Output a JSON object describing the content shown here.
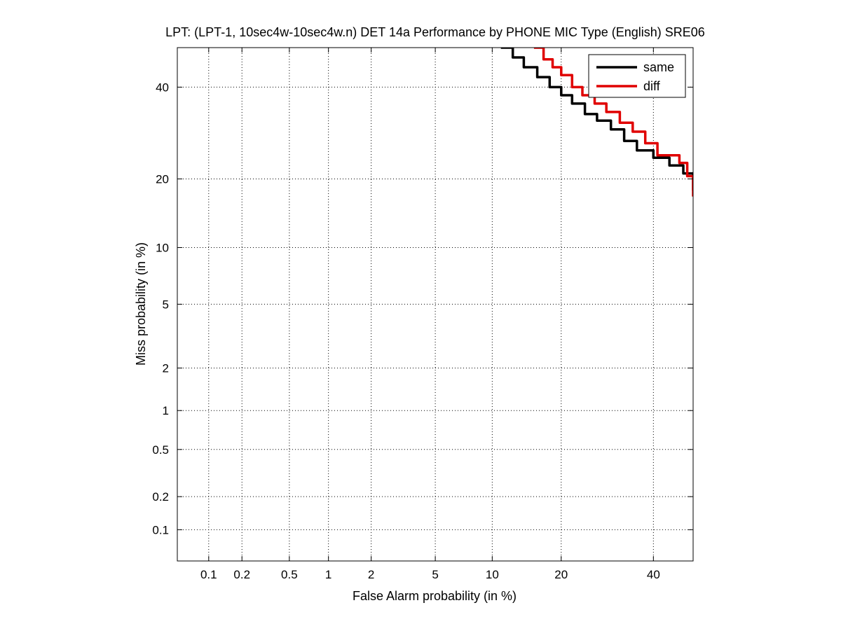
{
  "chart_data": {
    "type": "line",
    "title": "LPT: (LPT-1, 10sec4w-10sec4w.n) DET 14a Performance by PHONE MIC Type (English) SRE06",
    "xlabel": "False Alarm probability (in %)",
    "ylabel": "Miss probability (in %)",
    "x_scale": "probit",
    "y_scale": "probit",
    "xlim": [
      0.05,
      50
    ],
    "ylim": [
      0.05,
      50
    ],
    "x_ticks": [
      0.1,
      0.2,
      0.5,
      1,
      2,
      5,
      10,
      20,
      40
    ],
    "x_tick_labels": [
      "0.1",
      "0.2",
      "0.5",
      "1",
      "2",
      "5",
      "10",
      "20",
      "40"
    ],
    "y_ticks": [
      0.1,
      0.2,
      0.5,
      1,
      2,
      5,
      10,
      20,
      40
    ],
    "y_tick_labels": [
      "0.1",
      "0.2",
      "0.5",
      "1",
      "2",
      "5",
      "10",
      "20",
      "40"
    ],
    "grid": true,
    "legend_position": "top-right",
    "series": [
      {
        "name": "same",
        "color": "#000000",
        "x": [
          11.0,
          12.5,
          14.0,
          16.0,
          18.0,
          20.0,
          22.0,
          24.5,
          27.0,
          30.0,
          33.0,
          36.0,
          40.0,
          44.0,
          47.5,
          50.0
        ],
        "y": [
          50.0,
          47.5,
          45.0,
          42.5,
          40.0,
          38.0,
          36.0,
          33.5,
          32.0,
          30.0,
          27.5,
          25.5,
          24.0,
          22.5,
          21.0,
          18.0
        ]
      },
      {
        "name": "diff",
        "color": "#e00000",
        "x": [
          15.5,
          17.0,
          18.5,
          20.0,
          22.0,
          24.0,
          26.5,
          29.0,
          32.0,
          35.0,
          38.0,
          41.0,
          44.0,
          46.5,
          48.5,
          50.0
        ],
        "y": [
          50.0,
          47.0,
          45.0,
          43.0,
          40.0,
          38.0,
          36.0,
          34.0,
          31.5,
          29.5,
          27.0,
          24.5,
          24.5,
          23.0,
          20.5,
          17.0
        ]
      }
    ]
  }
}
